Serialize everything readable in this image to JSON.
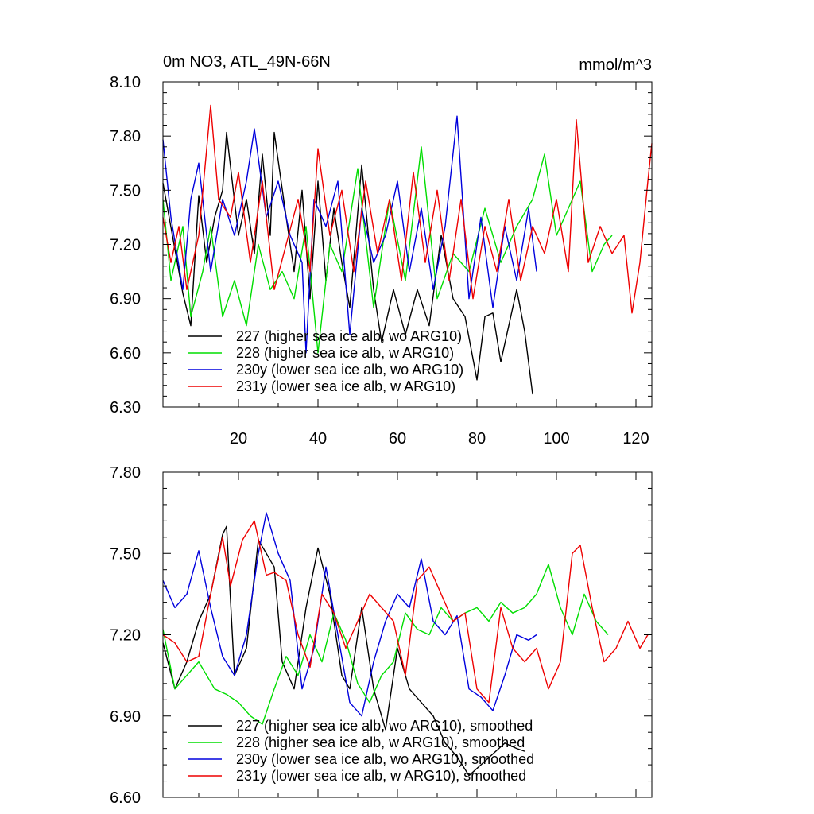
{
  "figure": {
    "title_left": "0m NO3, ATL_49N-66N",
    "title_right": "mmol/m^3"
  },
  "chart_data": [
    {
      "type": "line",
      "title": "0m NO3, ATL_49N-66N",
      "units": "mmol/m^3",
      "xlim": [
        1,
        124
      ],
      "ylim": [
        6.3,
        8.1
      ],
      "xticks": [
        20,
        40,
        60,
        80,
        100,
        120
      ],
      "xtick_labels": [
        "20",
        "40",
        "60",
        "80",
        "100",
        "120"
      ],
      "yticks": [
        6.3,
        6.6,
        6.9,
        7.2,
        7.5,
        7.8,
        8.1
      ],
      "ytick_labels": [
        "6.30",
        "6.60",
        "6.90",
        "7.20",
        "7.50",
        "7.80",
        "8.10"
      ],
      "series": [
        {
          "name": "227 (higher sea ice alb, wo ARG10)",
          "color": "#000000",
          "x": [
            1,
            6,
            8,
            10,
            12,
            14,
            16,
            17,
            20,
            22,
            24,
            26,
            28,
            29,
            32,
            34,
            36,
            38,
            40,
            42,
            44,
            46,
            48,
            51,
            54,
            56,
            59,
            62,
            65,
            68,
            71,
            74,
            77,
            80,
            82,
            84,
            86,
            88,
            90,
            92,
            94
          ],
          "values": [
            7.54,
            6.93,
            6.75,
            7.47,
            7.1,
            7.35,
            7.5,
            7.82,
            7.25,
            7.45,
            7.15,
            7.7,
            7.25,
            7.82,
            7.35,
            7.05,
            7.5,
            6.9,
            7.55,
            7.0,
            7.4,
            7.1,
            6.85,
            7.64,
            6.95,
            6.66,
            6.95,
            6.7,
            6.95,
            6.75,
            7.25,
            6.9,
            6.8,
            6.45,
            6.8,
            6.82,
            6.55,
            6.75,
            6.95,
            6.72,
            6.37
          ]
        },
        {
          "name": "228 (higher sea ice alb, w ARG10)",
          "color": "#00dd00",
          "x": [
            1,
            3,
            6,
            8,
            11,
            13,
            16,
            19,
            22,
            25,
            28,
            31,
            34,
            37,
            40,
            43,
            46,
            50,
            54,
            58,
            62,
            66,
            70,
            74,
            78,
            82,
            86,
            90,
            94,
            97,
            100,
            103,
            106,
            109,
            112,
            114
          ],
          "values": [
            7.45,
            7.0,
            7.3,
            6.8,
            7.05,
            7.3,
            6.8,
            7.0,
            6.75,
            7.2,
            6.95,
            7.05,
            6.9,
            7.3,
            6.6,
            7.2,
            7.05,
            7.62,
            6.85,
            7.45,
            7.0,
            7.74,
            6.9,
            7.15,
            7.05,
            7.4,
            7.1,
            7.3,
            7.45,
            7.7,
            7.25,
            7.4,
            7.55,
            7.05,
            7.2,
            7.25
          ]
        },
        {
          "name": "230y (lower sea ice alb, wo ARG10)",
          "color": "#0000dd",
          "x": [
            1,
            3,
            6,
            8,
            10,
            13,
            16,
            19,
            22,
            24,
            27,
            30,
            33,
            36,
            37,
            39,
            42,
            45,
            48,
            51,
            54,
            57,
            60,
            63,
            66,
            69,
            72,
            75,
            78,
            81,
            84,
            87,
            90,
            93,
            95
          ],
          "values": [
            7.78,
            7.35,
            6.95,
            7.45,
            7.65,
            7.05,
            7.45,
            7.25,
            7.55,
            7.84,
            7.35,
            7.55,
            7.25,
            7.1,
            6.6,
            7.45,
            7.3,
            7.55,
            6.7,
            7.4,
            7.1,
            7.25,
            7.55,
            7.05,
            7.4,
            6.95,
            7.3,
            7.91,
            6.9,
            7.35,
            6.85,
            7.3,
            7.0,
            7.4,
            7.05
          ]
        },
        {
          "name": "231y (lower sea ice alb, w ARG10)",
          "color": "#ee0000",
          "x": [
            1,
            3,
            5,
            7,
            10,
            13,
            15,
            18,
            20,
            23,
            26,
            29,
            32,
            35,
            38,
            40,
            43,
            46,
            49,
            52,
            55,
            58,
            61,
            64,
            67,
            70,
            73,
            76,
            79,
            82,
            85,
            88,
            91,
            94,
            97,
            100,
            103,
            105,
            108,
            111,
            114,
            117,
            119,
            121,
            123,
            124
          ],
          "values": [
            7.35,
            7.1,
            7.3,
            6.95,
            7.25,
            7.97,
            7.45,
            7.35,
            7.6,
            7.1,
            7.55,
            6.95,
            7.2,
            7.45,
            7.05,
            7.73,
            7.25,
            7.5,
            7.05,
            7.55,
            7.15,
            7.45,
            7.0,
            7.6,
            7.1,
            7.5,
            7.0,
            7.45,
            6.9,
            7.3,
            7.05,
            7.45,
            7.0,
            7.3,
            7.15,
            7.45,
            7.05,
            7.89,
            7.1,
            7.3,
            7.15,
            7.25,
            6.82,
            7.1,
            7.55,
            7.76
          ]
        }
      ]
    },
    {
      "type": "line",
      "title": "",
      "units": "mmol/m^3",
      "xlim": [
        1,
        124
      ],
      "ylim": [
        6.6,
        7.8
      ],
      "xticks": [
        20,
        40,
        60,
        80,
        100,
        120
      ],
      "xtick_labels": [],
      "yticks": [
        6.6,
        6.9,
        7.2,
        7.5,
        7.8
      ],
      "ytick_labels": [
        "6.60",
        "6.90",
        "7.20",
        "7.50",
        "7.80"
      ],
      "series": [
        {
          "name": "227 (higher sea ice alb, wo ARG10), smoothed",
          "color": "#000000",
          "x": [
            1,
            4,
            7,
            10,
            13,
            16,
            17,
            19,
            22,
            25,
            27,
            29,
            31,
            34,
            37,
            40,
            43,
            46,
            48,
            51,
            54,
            57,
            60,
            63,
            66,
            69,
            72,
            75,
            78,
            81,
            84,
            87,
            90,
            92
          ],
          "values": [
            7.17,
            7.0,
            7.1,
            7.25,
            7.35,
            7.57,
            7.6,
            7.05,
            7.15,
            7.55,
            7.5,
            7.45,
            7.1,
            7.0,
            7.3,
            7.52,
            7.35,
            7.05,
            7.0,
            7.3,
            7.0,
            6.85,
            7.15,
            7.0,
            6.95,
            6.9,
            6.8,
            6.75,
            6.68,
            6.72,
            6.76,
            6.8,
            6.78,
            6.77
          ]
        },
        {
          "name": "228 (higher sea ice alb, w ARG10), smoothed",
          "color": "#00dd00",
          "x": [
            1,
            4,
            7,
            10,
            14,
            17,
            20,
            23,
            26,
            29,
            32,
            35,
            38,
            41,
            44,
            47,
            50,
            53,
            56,
            59,
            62,
            65,
            68,
            71,
            74,
            77,
            80,
            83,
            86,
            89,
            92,
            95,
            98,
            101,
            104,
            107,
            110,
            113
          ],
          "values": [
            7.22,
            7.0,
            7.05,
            7.1,
            7.0,
            6.98,
            6.95,
            6.9,
            6.87,
            7.0,
            7.12,
            7.05,
            7.2,
            7.1,
            7.28,
            7.18,
            7.02,
            6.95,
            7.05,
            7.1,
            7.28,
            7.22,
            7.2,
            7.3,
            7.25,
            7.28,
            7.3,
            7.25,
            7.32,
            7.28,
            7.3,
            7.35,
            7.46,
            7.3,
            7.2,
            7.35,
            7.25,
            7.2
          ]
        },
        {
          "name": "230y (lower sea ice alb, wo ARG10), smoothed",
          "color": "#0000dd",
          "x": [
            1,
            4,
            7,
            10,
            13,
            16,
            19,
            22,
            25,
            27,
            30,
            33,
            36,
            39,
            42,
            45,
            48,
            51,
            54,
            57,
            60,
            63,
            66,
            69,
            72,
            75,
            78,
            81,
            84,
            87,
            90,
            93,
            95
          ],
          "values": [
            7.4,
            7.3,
            7.35,
            7.51,
            7.3,
            7.12,
            7.05,
            7.2,
            7.5,
            7.65,
            7.5,
            7.4,
            7.0,
            7.15,
            7.45,
            7.2,
            6.95,
            6.9,
            7.1,
            7.25,
            7.35,
            7.3,
            7.48,
            7.25,
            7.2,
            7.27,
            7.0,
            6.97,
            6.92,
            7.05,
            7.2,
            7.18,
            7.2
          ]
        },
        {
          "name": "231y (lower sea ice alb, w ARG10), smoothed",
          "color": "#ee0000",
          "x": [
            1,
            4,
            7,
            10,
            13,
            16,
            18,
            21,
            24,
            27,
            29,
            32,
            35,
            38,
            41,
            44,
            47,
            50,
            53,
            56,
            59,
            62,
            65,
            68,
            71,
            74,
            77,
            80,
            83,
            86,
            89,
            92,
            95,
            98,
            101,
            104,
            106,
            109,
            112,
            115,
            118,
            121,
            123
          ],
          "values": [
            7.2,
            7.17,
            7.1,
            7.12,
            7.35,
            7.56,
            7.38,
            7.55,
            7.62,
            7.42,
            7.43,
            7.4,
            7.2,
            7.08,
            7.35,
            7.28,
            7.15,
            7.25,
            7.35,
            7.3,
            7.25,
            7.05,
            7.4,
            7.45,
            7.35,
            7.25,
            7.28,
            7.0,
            6.95,
            7.3,
            7.15,
            7.1,
            7.15,
            7.0,
            7.1,
            7.5,
            7.53,
            7.3,
            7.1,
            7.15,
            7.25,
            7.15,
            7.2
          ]
        }
      ]
    }
  ]
}
